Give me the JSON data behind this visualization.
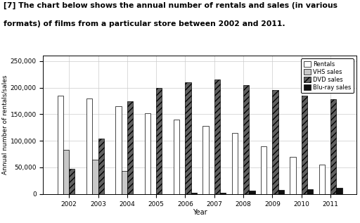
{
  "years": [
    2002,
    2003,
    2004,
    2005,
    2006,
    2007,
    2008,
    2009,
    2010,
    2011
  ],
  "rentals": [
    185000,
    180000,
    165000,
    152000,
    140000,
    128000,
    115000,
    90000,
    70000,
    55000
  ],
  "vhs_sales": [
    83000,
    65000,
    43000,
    0,
    0,
    0,
    0,
    0,
    0,
    0
  ],
  "dvd_sales": [
    47000,
    104000,
    175000,
    200000,
    210000,
    215000,
    205000,
    195000,
    185000,
    178000
  ],
  "blu_sales": [
    0,
    0,
    0,
    0,
    2000,
    3000,
    6000,
    7000,
    9000,
    12000
  ],
  "title_line1": "[7] The chart below shows the annual number of rentals and sales (in various",
  "title_line2": "formats) of films from a particular store between 2002 and 2011.",
  "ylabel": "Annual number of rentals/sales",
  "xlabel": "Year",
  "ylim": [
    0,
    260000
  ],
  "yticks": [
    0,
    50000,
    100000,
    150000,
    200000,
    250000
  ],
  "ytick_labels": [
    "0",
    "50,000",
    "100,000",
    "150,000",
    "200,000",
    "250,000"
  ],
  "colors": {
    "rentals": "#ffffff",
    "vhs_sales": "#c8c8c8",
    "dvd_sales": "#606060",
    "blu_sales": "#101010"
  },
  "legend_labels": [
    "Rentals",
    "VHS sales",
    "DVD sales",
    "Blu-ray sales"
  ],
  "bar_width": 0.2,
  "figsize": [
    5.12,
    3.17
  ],
  "dpi": 100
}
